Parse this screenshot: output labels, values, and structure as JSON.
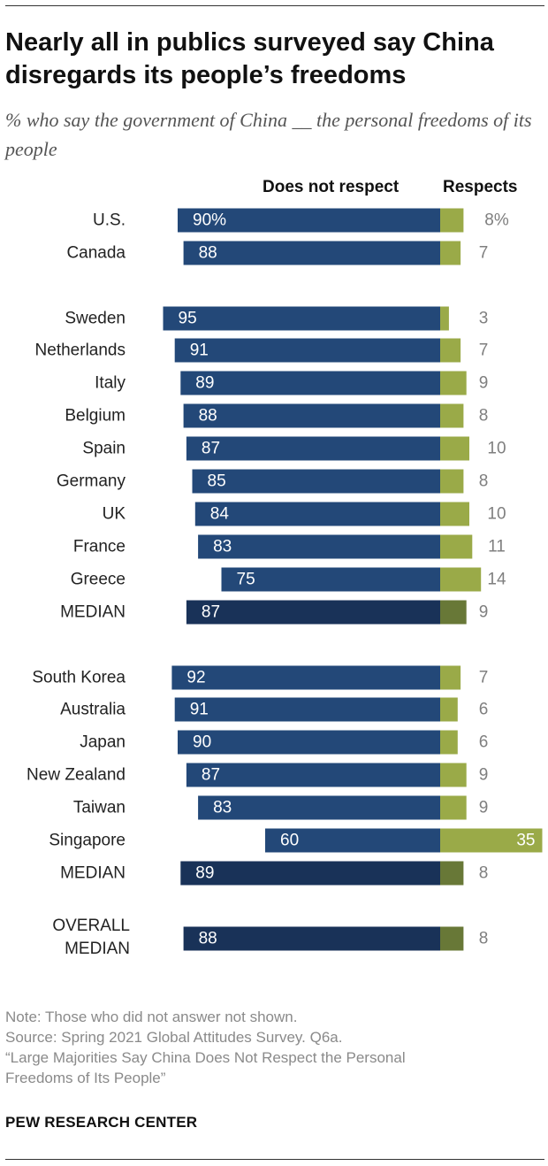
{
  "header": {
    "title": "Nearly all in publics surveyed say China disregards its people’s freedoms",
    "subtitle": "% who say the government of China __ the personal freedoms of its people"
  },
  "columns": {
    "left": "Does not respect",
    "right": "Respects"
  },
  "colors": {
    "not_respect": "#234878",
    "respects": "#9aaa48",
    "median_not_respect": "#193258",
    "median_respects": "#687837",
    "label_gray": "#7f7f7f"
  },
  "chart_data": {
    "type": "bar",
    "orientation": "horizontal-diverging",
    "series": [
      {
        "name": "Does not respect",
        "values": [
          90,
          88,
          95,
          91,
          89,
          88,
          87,
          85,
          84,
          83,
          75,
          87,
          92,
          91,
          90,
          87,
          83,
          60,
          89,
          88
        ]
      },
      {
        "name": "Respects",
        "values": [
          8,
          7,
          3,
          7,
          9,
          8,
          10,
          8,
          10,
          11,
          14,
          9,
          7,
          6,
          6,
          9,
          9,
          35,
          8,
          8
        ]
      }
    ],
    "rows": [
      {
        "label": "U.S.",
        "not_respect": 90,
        "respects": 8,
        "not_respect_label": "90%",
        "respects_label": "8%",
        "median": false
      },
      {
        "label": "Canada",
        "not_respect": 88,
        "respects": 7,
        "not_respect_label": "88",
        "respects_label": "7",
        "median": false
      },
      {
        "label": "Sweden",
        "not_respect": 95,
        "respects": 3,
        "not_respect_label": "95",
        "respects_label": "3",
        "median": false
      },
      {
        "label": "Netherlands",
        "not_respect": 91,
        "respects": 7,
        "not_respect_label": "91",
        "respects_label": "7",
        "median": false
      },
      {
        "label": "Italy",
        "not_respect": 89,
        "respects": 9,
        "not_respect_label": "89",
        "respects_label": "9",
        "median": false
      },
      {
        "label": "Belgium",
        "not_respect": 88,
        "respects": 8,
        "not_respect_label": "88",
        "respects_label": "8",
        "median": false
      },
      {
        "label": "Spain",
        "not_respect": 87,
        "respects": 10,
        "not_respect_label": "87",
        "respects_label": "10",
        "median": false
      },
      {
        "label": "Germany",
        "not_respect": 85,
        "respects": 8,
        "not_respect_label": "85",
        "respects_label": "8",
        "median": false
      },
      {
        "label": "UK",
        "not_respect": 84,
        "respects": 10,
        "not_respect_label": "84",
        "respects_label": "10",
        "median": false
      },
      {
        "label": "France",
        "not_respect": 83,
        "respects": 11,
        "not_respect_label": "83",
        "respects_label": "11",
        "median": false
      },
      {
        "label": "Greece",
        "not_respect": 75,
        "respects": 14,
        "not_respect_label": "75",
        "respects_label": "14",
        "median": false
      },
      {
        "label": "MEDIAN",
        "not_respect": 87,
        "respects": 9,
        "not_respect_label": "87",
        "respects_label": "9",
        "median": true
      },
      {
        "label": "South Korea",
        "not_respect": 92,
        "respects": 7,
        "not_respect_label": "92",
        "respects_label": "7",
        "median": false
      },
      {
        "label": "Australia",
        "not_respect": 91,
        "respects": 6,
        "not_respect_label": "91",
        "respects_label": "6",
        "median": false
      },
      {
        "label": "Japan",
        "not_respect": 90,
        "respects": 6,
        "not_respect_label": "90",
        "respects_label": "6",
        "median": false
      },
      {
        "label": "New Zealand",
        "not_respect": 87,
        "respects": 9,
        "not_respect_label": "87",
        "respects_label": "9",
        "median": false
      },
      {
        "label": "Taiwan",
        "not_respect": 83,
        "respects": 9,
        "not_respect_label": "83",
        "respects_label": "9",
        "median": false
      },
      {
        "label": "Singapore",
        "not_respect": 60,
        "respects": 35,
        "not_respect_label": "60",
        "respects_label": "35",
        "median": false
      },
      {
        "label": "MEDIAN",
        "not_respect": 89,
        "respects": 8,
        "not_respect_label": "89",
        "respects_label": "8",
        "median": true
      },
      {
        "label": "OVERALL MEDIAN",
        "label_lines": [
          "OVERALL",
          "MEDIAN"
        ],
        "not_respect": 88,
        "respects": 8,
        "not_respect_label": "88",
        "respects_label": "8",
        "median": true
      }
    ],
    "grid": false,
    "legend": "column headers"
  },
  "footer": {
    "note": "Note: Those who did not answer not shown.",
    "source": "Source: Spring 2021 Global Attitudes Survey. Q6a.",
    "report_line1": "“Large Majorities Say China Does Not Respect the Personal",
    "report_line2": "Freedoms of Its People”",
    "brand": "PEW RESEARCH CENTER"
  }
}
